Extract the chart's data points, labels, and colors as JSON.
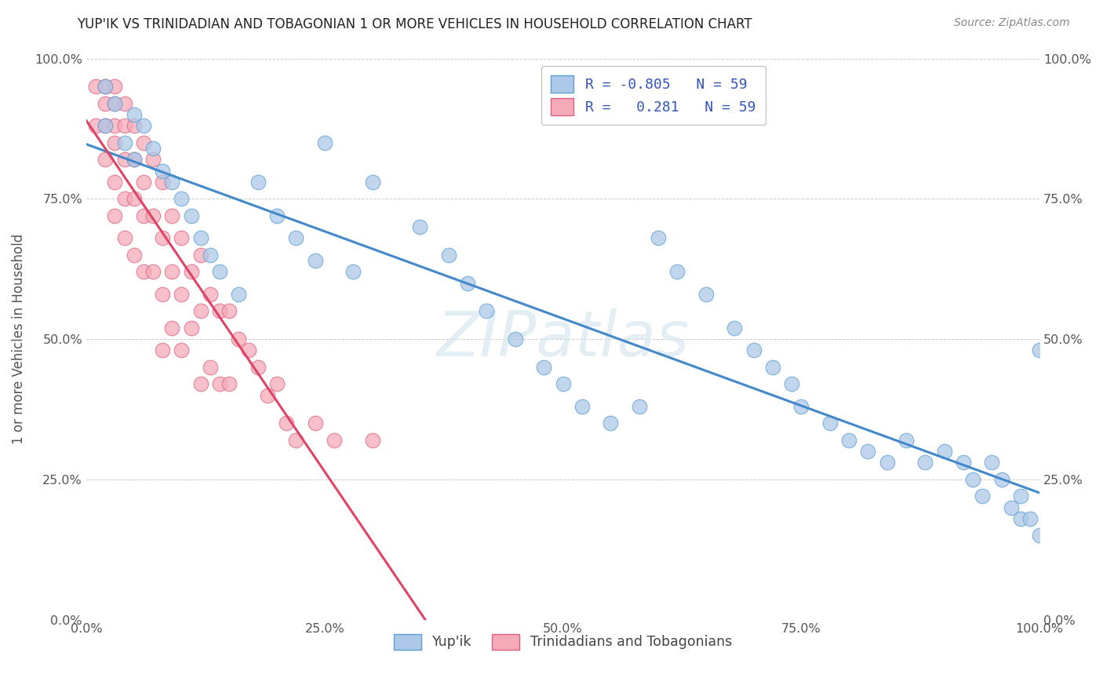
{
  "title": "YUP'IK VS TRINIDADIAN AND TOBAGONIAN 1 OR MORE VEHICLES IN HOUSEHOLD CORRELATION CHART",
  "source": "Source: ZipAtlas.com",
  "ylabel": "1 or more Vehicles in Household",
  "xlim": [
    0.0,
    1.0
  ],
  "ylim": [
    0.0,
    1.0
  ],
  "xtick_labels": [
    "0.0%",
    "25.0%",
    "50.0%",
    "75.0%",
    "100.0%"
  ],
  "xtick_vals": [
    0.0,
    0.25,
    0.5,
    0.75,
    1.0
  ],
  "ytick_vals": [
    0.0,
    0.25,
    0.5,
    0.75,
    1.0
  ],
  "ytick_labels": [
    "0.0%",
    "25.0%",
    "50.0%",
    "75.0%",
    "100.0%"
  ],
  "blue_R": -0.805,
  "blue_N": 59,
  "pink_R": 0.281,
  "pink_N": 59,
  "blue_color": "#adc8e8",
  "pink_color": "#f5aab8",
  "blue_edge_color": "#5a9fd4",
  "pink_edge_color": "#e06080",
  "blue_line_color": "#4488cc",
  "pink_line_color": "#dd4466",
  "legend_blue_label": "Yup'ik",
  "legend_pink_label": "Trinidadians and Tobagonians",
  "watermark": "ZIPatlas",
  "title_color": "#222222",
  "axis_color": "#555555",
  "grid_color": "#cccccc",
  "source_color": "#888888",
  "blue_x": [
    0.02,
    0.02,
    0.03,
    0.04,
    0.05,
    0.05,
    0.06,
    0.07,
    0.08,
    0.09,
    0.1,
    0.11,
    0.12,
    0.13,
    0.14,
    0.16,
    0.18,
    0.2,
    0.22,
    0.24,
    0.25,
    0.28,
    0.3,
    0.35,
    0.38,
    0.4,
    0.42,
    0.45,
    0.48,
    0.5,
    0.52,
    0.55,
    0.58,
    0.6,
    0.62,
    0.65,
    0.68,
    0.7,
    0.72,
    0.74,
    0.75,
    0.78,
    0.8,
    0.82,
    0.84,
    0.86,
    0.88,
    0.9,
    0.92,
    0.93,
    0.94,
    0.95,
    0.96,
    0.97,
    0.98,
    0.98,
    0.99,
    1.0,
    1.0
  ],
  "blue_y": [
    0.95,
    0.88,
    0.92,
    0.85,
    0.9,
    0.82,
    0.88,
    0.84,
    0.8,
    0.78,
    0.75,
    0.72,
    0.68,
    0.65,
    0.62,
    0.58,
    0.78,
    0.72,
    0.68,
    0.64,
    0.85,
    0.62,
    0.78,
    0.7,
    0.65,
    0.6,
    0.55,
    0.5,
    0.45,
    0.42,
    0.38,
    0.35,
    0.38,
    0.68,
    0.62,
    0.58,
    0.52,
    0.48,
    0.45,
    0.42,
    0.38,
    0.35,
    0.32,
    0.3,
    0.28,
    0.32,
    0.28,
    0.3,
    0.28,
    0.25,
    0.22,
    0.28,
    0.25,
    0.2,
    0.18,
    0.22,
    0.18,
    0.15,
    0.48
  ],
  "pink_x": [
    0.01,
    0.01,
    0.02,
    0.02,
    0.02,
    0.02,
    0.03,
    0.03,
    0.03,
    0.03,
    0.03,
    0.03,
    0.04,
    0.04,
    0.04,
    0.04,
    0.04,
    0.05,
    0.05,
    0.05,
    0.05,
    0.06,
    0.06,
    0.06,
    0.06,
    0.07,
    0.07,
    0.07,
    0.08,
    0.08,
    0.08,
    0.08,
    0.09,
    0.09,
    0.09,
    0.1,
    0.1,
    0.1,
    0.11,
    0.11,
    0.12,
    0.12,
    0.12,
    0.13,
    0.13,
    0.14,
    0.14,
    0.15,
    0.15,
    0.16,
    0.17,
    0.18,
    0.19,
    0.2,
    0.21,
    0.22,
    0.24,
    0.26,
    0.3
  ],
  "pink_y": [
    0.95,
    0.88,
    0.95,
    0.92,
    0.88,
    0.82,
    0.95,
    0.92,
    0.88,
    0.85,
    0.78,
    0.72,
    0.92,
    0.88,
    0.82,
    0.75,
    0.68,
    0.88,
    0.82,
    0.75,
    0.65,
    0.85,
    0.78,
    0.72,
    0.62,
    0.82,
    0.72,
    0.62,
    0.78,
    0.68,
    0.58,
    0.48,
    0.72,
    0.62,
    0.52,
    0.68,
    0.58,
    0.48,
    0.62,
    0.52,
    0.65,
    0.55,
    0.42,
    0.58,
    0.45,
    0.55,
    0.42,
    0.55,
    0.42,
    0.5,
    0.48,
    0.45,
    0.4,
    0.42,
    0.35,
    0.32,
    0.35,
    0.32,
    0.32
  ]
}
